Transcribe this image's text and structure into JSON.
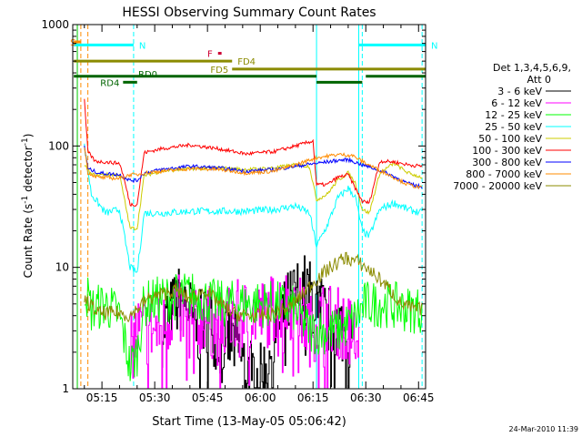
{
  "chart_data": {
    "type": "line",
    "title": "HESSI Observing Summary Count Rates",
    "xlabel": "Start Time (13-May-05 05:06:42)",
    "ylabel_main": "Count Rate (s",
    "ylabel_sup1": "-1",
    "ylabel_mid": " detector",
    "ylabel_sup2": "-1",
    "ylabel_end": ")",
    "y_scale": "log",
    "ylim": [
      1,
      1000
    ],
    "xlim": [
      "05:06:42",
      "06:47:00"
    ],
    "x_ticks": [
      "05:15",
      "05:30",
      "05:45",
      "06:00",
      "06:15",
      "06:30",
      "06:45"
    ],
    "y_ticks": [
      "1",
      "10",
      "100",
      "1000"
    ],
    "legend_title_1": "Det 1,3,4,5,6,9,",
    "legend_title_2": "Att 0",
    "legend_placement": "right",
    "timestamp": "24-Mar-2010 11:39",
    "flags": [
      {
        "label": "S",
        "color": "#ff8c00",
        "start": "05:07",
        "end": "05:09",
        "y": 720
      },
      {
        "label": "N",
        "color": "#00ffff",
        "start": "05:07",
        "end": "05:24",
        "y": 680
      },
      {
        "label": "N",
        "color": "#00ffff",
        "start": "06:28",
        "end": "06:47",
        "y": 680
      },
      {
        "label": "F",
        "color": "#cc0033",
        "start": "05:48",
        "end": "05:49",
        "y": 580
      },
      {
        "label": "FD4",
        "color": "#8b8b00",
        "start": "05:07",
        "end": "05:52",
        "y": 500
      },
      {
        "label": "FD5",
        "color": "#8b8b00",
        "start": "05:52",
        "end": "06:47",
        "y": 430
      },
      {
        "label": "RD0",
        "color": "#006400",
        "start": "05:07",
        "end": "06:16",
        "y": 375
      },
      {
        "label": "",
        "color": "#006400",
        "start": "06:30",
        "end": "06:47",
        "y": 375
      },
      {
        "label": "RD4",
        "color": "#006400",
        "start": "05:21",
        "end": "05:25",
        "y": 335
      },
      {
        "label": "",
        "color": "#006400",
        "start": "06:16",
        "end": "06:29",
        "y": 335
      }
    ],
    "vlines": [
      {
        "time": "05:08",
        "color": "#00cc00",
        "style": "solid"
      },
      {
        "time": "05:09",
        "color": "#ff8c00",
        "style": "dashed"
      },
      {
        "time": "05:11",
        "color": "#ff8c00",
        "style": "dashed"
      },
      {
        "time": "05:24",
        "color": "#00ffff",
        "style": "dashed"
      },
      {
        "time": "06:16",
        "color": "#00ffff",
        "style": "solid"
      },
      {
        "time": "06:28",
        "color": "#00ffff",
        "style": "solid"
      },
      {
        "time": "06:29",
        "color": "#00ffff",
        "style": "dashed"
      },
      {
        "time": "06:46",
        "color": "#00ffff",
        "style": "dashed"
      }
    ],
    "series": [
      {
        "name": "3 - 6 keV",
        "color": "#000000",
        "width": 1,
        "noise": 0.6,
        "bars": true,
        "points": [
          [
            "05:32",
            3
          ],
          [
            "05:34",
            4
          ],
          [
            "05:38",
            6
          ],
          [
            "05:42",
            3
          ],
          [
            "05:45",
            4
          ],
          [
            "05:48",
            2.5
          ],
          [
            "05:52",
            2.5
          ],
          [
            "05:56",
            1.5
          ],
          [
            "06:00",
            1.2
          ],
          [
            "06:04",
            2.5
          ],
          [
            "06:08",
            5
          ],
          [
            "06:12",
            7
          ],
          [
            "06:16",
            5
          ],
          [
            "06:20",
            3.5
          ],
          [
            "06:24",
            3
          ],
          [
            "06:26",
            3
          ]
        ]
      },
      {
        "name": "6 - 12 keV",
        "color": "#ff00ff",
        "width": 1,
        "noise": 0.6,
        "bars": true,
        "points": [
          [
            "05:23",
            2
          ],
          [
            "05:25",
            3
          ],
          [
            "05:28",
            3
          ],
          [
            "05:32",
            3
          ],
          [
            "05:36",
            5
          ],
          [
            "05:40",
            3
          ],
          [
            "05:44",
            4
          ],
          [
            "05:48",
            3
          ],
          [
            "05:52",
            4
          ],
          [
            "06:00",
            4
          ],
          [
            "06:06",
            5
          ],
          [
            "06:10",
            5
          ],
          [
            "06:14",
            3
          ],
          [
            "06:18",
            4
          ],
          [
            "06:22",
            3.5
          ],
          [
            "06:26",
            3
          ],
          [
            "06:28",
            2
          ]
        ]
      },
      {
        "name": "12 - 25 keV",
        "color": "#00ff00",
        "width": 1,
        "noise": 0.4,
        "bars": false,
        "points": [
          [
            "05:10",
            7
          ],
          [
            "05:12",
            4.5
          ],
          [
            "05:16",
            5
          ],
          [
            "05:20",
            4
          ],
          [
            "05:23",
            1.5
          ],
          [
            "05:25",
            2
          ],
          [
            "05:27",
            5
          ],
          [
            "05:32",
            5.5
          ],
          [
            "05:40",
            6
          ],
          [
            "05:48",
            5
          ],
          [
            "05:56",
            5
          ],
          [
            "06:04",
            5
          ],
          [
            "06:10",
            4.5
          ],
          [
            "06:14",
            3
          ],
          [
            "06:18",
            3
          ],
          [
            "06:22",
            3
          ],
          [
            "06:26",
            3.5
          ],
          [
            "06:30",
            5
          ],
          [
            "06:36",
            5
          ],
          [
            "06:42",
            4.5
          ],
          [
            "06:46",
            4.5
          ]
        ]
      },
      {
        "name": "25 - 50 keV",
        "color": "#00ffff",
        "width": 1,
        "noise": 0.06,
        "bars": false,
        "points": [
          [
            "05:10",
            100
          ],
          [
            "05:12",
            40
          ],
          [
            "05:16",
            28
          ],
          [
            "05:20",
            30
          ],
          [
            "05:23",
            10
          ],
          [
            "05:25",
            9
          ],
          [
            "05:27",
            28
          ],
          [
            "05:32",
            28
          ],
          [
            "05:40",
            29
          ],
          [
            "05:48",
            29
          ],
          [
            "05:56",
            29
          ],
          [
            "06:04",
            30
          ],
          [
            "06:10",
            32
          ],
          [
            "06:14",
            28
          ],
          [
            "06:16",
            15
          ],
          [
            "06:19",
            22
          ],
          [
            "06:22",
            37
          ],
          [
            "06:25",
            45
          ],
          [
            "06:27",
            38
          ],
          [
            "06:29",
            20
          ],
          [
            "06:31",
            18
          ],
          [
            "06:34",
            30
          ],
          [
            "06:38",
            34
          ],
          [
            "06:42",
            30
          ],
          [
            "06:46",
            28
          ]
        ]
      },
      {
        "name": "50 - 100 keV",
        "color": "#cccc00",
        "width": 1,
        "noise": 0.03,
        "bars": false,
        "points": [
          [
            "05:10",
            70
          ],
          [
            "05:12",
            58
          ],
          [
            "05:20",
            58
          ],
          [
            "05:23",
            21
          ],
          [
            "05:25",
            21
          ],
          [
            "05:27",
            57
          ],
          [
            "05:32",
            62
          ],
          [
            "05:40",
            65
          ],
          [
            "05:48",
            66
          ],
          [
            "05:56",
            64
          ],
          [
            "06:04",
            66
          ],
          [
            "06:10",
            70
          ],
          [
            "06:14",
            68
          ],
          [
            "06:16",
            36
          ],
          [
            "06:19",
            40
          ],
          [
            "06:22",
            52
          ],
          [
            "06:25",
            60
          ],
          [
            "06:27",
            50
          ],
          [
            "06:29",
            30
          ],
          [
            "06:31",
            28
          ],
          [
            "06:34",
            60
          ],
          [
            "06:38",
            72
          ],
          [
            "06:42",
            60
          ],
          [
            "06:46",
            55
          ]
        ]
      },
      {
        "name": "100 - 300 keV",
        "color": "#ff0000",
        "width": 1,
        "noise": 0.03,
        "bars": false,
        "points": [
          [
            "05:10",
            240
          ],
          [
            "05:11",
            90
          ],
          [
            "05:13",
            75
          ],
          [
            "05:20",
            72
          ],
          [
            "05:21",
            58
          ],
          [
            "05:23",
            33
          ],
          [
            "05:25",
            33
          ],
          [
            "05:27",
            88
          ],
          [
            "05:32",
            95
          ],
          [
            "05:40",
            102
          ],
          [
            "05:48",
            95
          ],
          [
            "05:56",
            86
          ],
          [
            "06:04",
            90
          ],
          [
            "06:10",
            100
          ],
          [
            "06:15",
            110
          ],
          [
            "06:16",
            48
          ],
          [
            "06:19",
            48
          ],
          [
            "06:22",
            55
          ],
          [
            "06:25",
            58
          ],
          [
            "06:27",
            45
          ],
          [
            "06:29",
            35
          ],
          [
            "06:31",
            34
          ],
          [
            "06:34",
            75
          ],
          [
            "06:38",
            74
          ],
          [
            "06:42",
            70
          ],
          [
            "06:46",
            68
          ]
        ]
      },
      {
        "name": "300 - 800 keV",
        "color": "#0000ff",
        "width": 1,
        "noise": 0.03,
        "bars": false,
        "points": [
          [
            "05:10",
            100
          ],
          [
            "05:11",
            65
          ],
          [
            "05:14",
            60
          ],
          [
            "05:20",
            58
          ],
          [
            "05:23",
            52
          ],
          [
            "05:25",
            52
          ],
          [
            "05:27",
            60
          ],
          [
            "05:32",
            64
          ],
          [
            "05:40",
            68
          ],
          [
            "05:48",
            66
          ],
          [
            "05:56",
            62
          ],
          [
            "06:04",
            64
          ],
          [
            "06:10",
            68
          ],
          [
            "06:16",
            72
          ],
          [
            "06:22",
            76
          ],
          [
            "06:25",
            77
          ],
          [
            "06:29",
            70
          ],
          [
            "06:34",
            63
          ],
          [
            "06:38",
            56
          ],
          [
            "06:42",
            49
          ],
          [
            "06:46",
            46
          ]
        ]
      },
      {
        "name": "800 - 7000 keV",
        "color": "#ff8c00",
        "width": 1,
        "noise": 0.03,
        "bars": false,
        "points": [
          [
            "05:10",
            100
          ],
          [
            "05:11",
            60
          ],
          [
            "05:14",
            55
          ],
          [
            "05:20",
            54
          ],
          [
            "05:23",
            58
          ],
          [
            "05:25",
            58
          ],
          [
            "05:27",
            60
          ],
          [
            "05:32",
            62
          ],
          [
            "05:40",
            65
          ],
          [
            "05:48",
            64
          ],
          [
            "05:56",
            60
          ],
          [
            "06:04",
            62
          ],
          [
            "06:10",
            70
          ],
          [
            "06:16",
            80
          ],
          [
            "06:22",
            85
          ],
          [
            "06:26",
            84
          ],
          [
            "06:30",
            72
          ],
          [
            "06:34",
            63
          ],
          [
            "06:38",
            55
          ],
          [
            "06:42",
            48
          ],
          [
            "06:46",
            45
          ]
        ]
      },
      {
        "name": "7000 - 20000 keV",
        "color": "#8b8b00",
        "width": 1,
        "noise": 0.12,
        "bars": false,
        "points": [
          [
            "05:10",
            5.5
          ],
          [
            "05:14",
            4.2
          ],
          [
            "05:20",
            4.2
          ],
          [
            "05:23",
            4
          ],
          [
            "05:28",
            5.5
          ],
          [
            "05:32",
            6
          ],
          [
            "05:36",
            6.5
          ],
          [
            "05:40",
            5.5
          ],
          [
            "05:44",
            6.5
          ],
          [
            "05:48",
            5.2
          ],
          [
            "05:52",
            4.2
          ],
          [
            "05:56",
            4
          ],
          [
            "06:00",
            4
          ],
          [
            "06:04",
            4.2
          ],
          [
            "06:08",
            4.6
          ],
          [
            "06:12",
            6
          ],
          [
            "06:16",
            8
          ],
          [
            "06:20",
            10
          ],
          [
            "06:24",
            12
          ],
          [
            "06:28",
            11
          ],
          [
            "06:32",
            9
          ],
          [
            "06:36",
            7
          ],
          [
            "06:40",
            5
          ],
          [
            "06:44",
            4.5
          ],
          [
            "06:46",
            4.5
          ]
        ]
      }
    ]
  }
}
